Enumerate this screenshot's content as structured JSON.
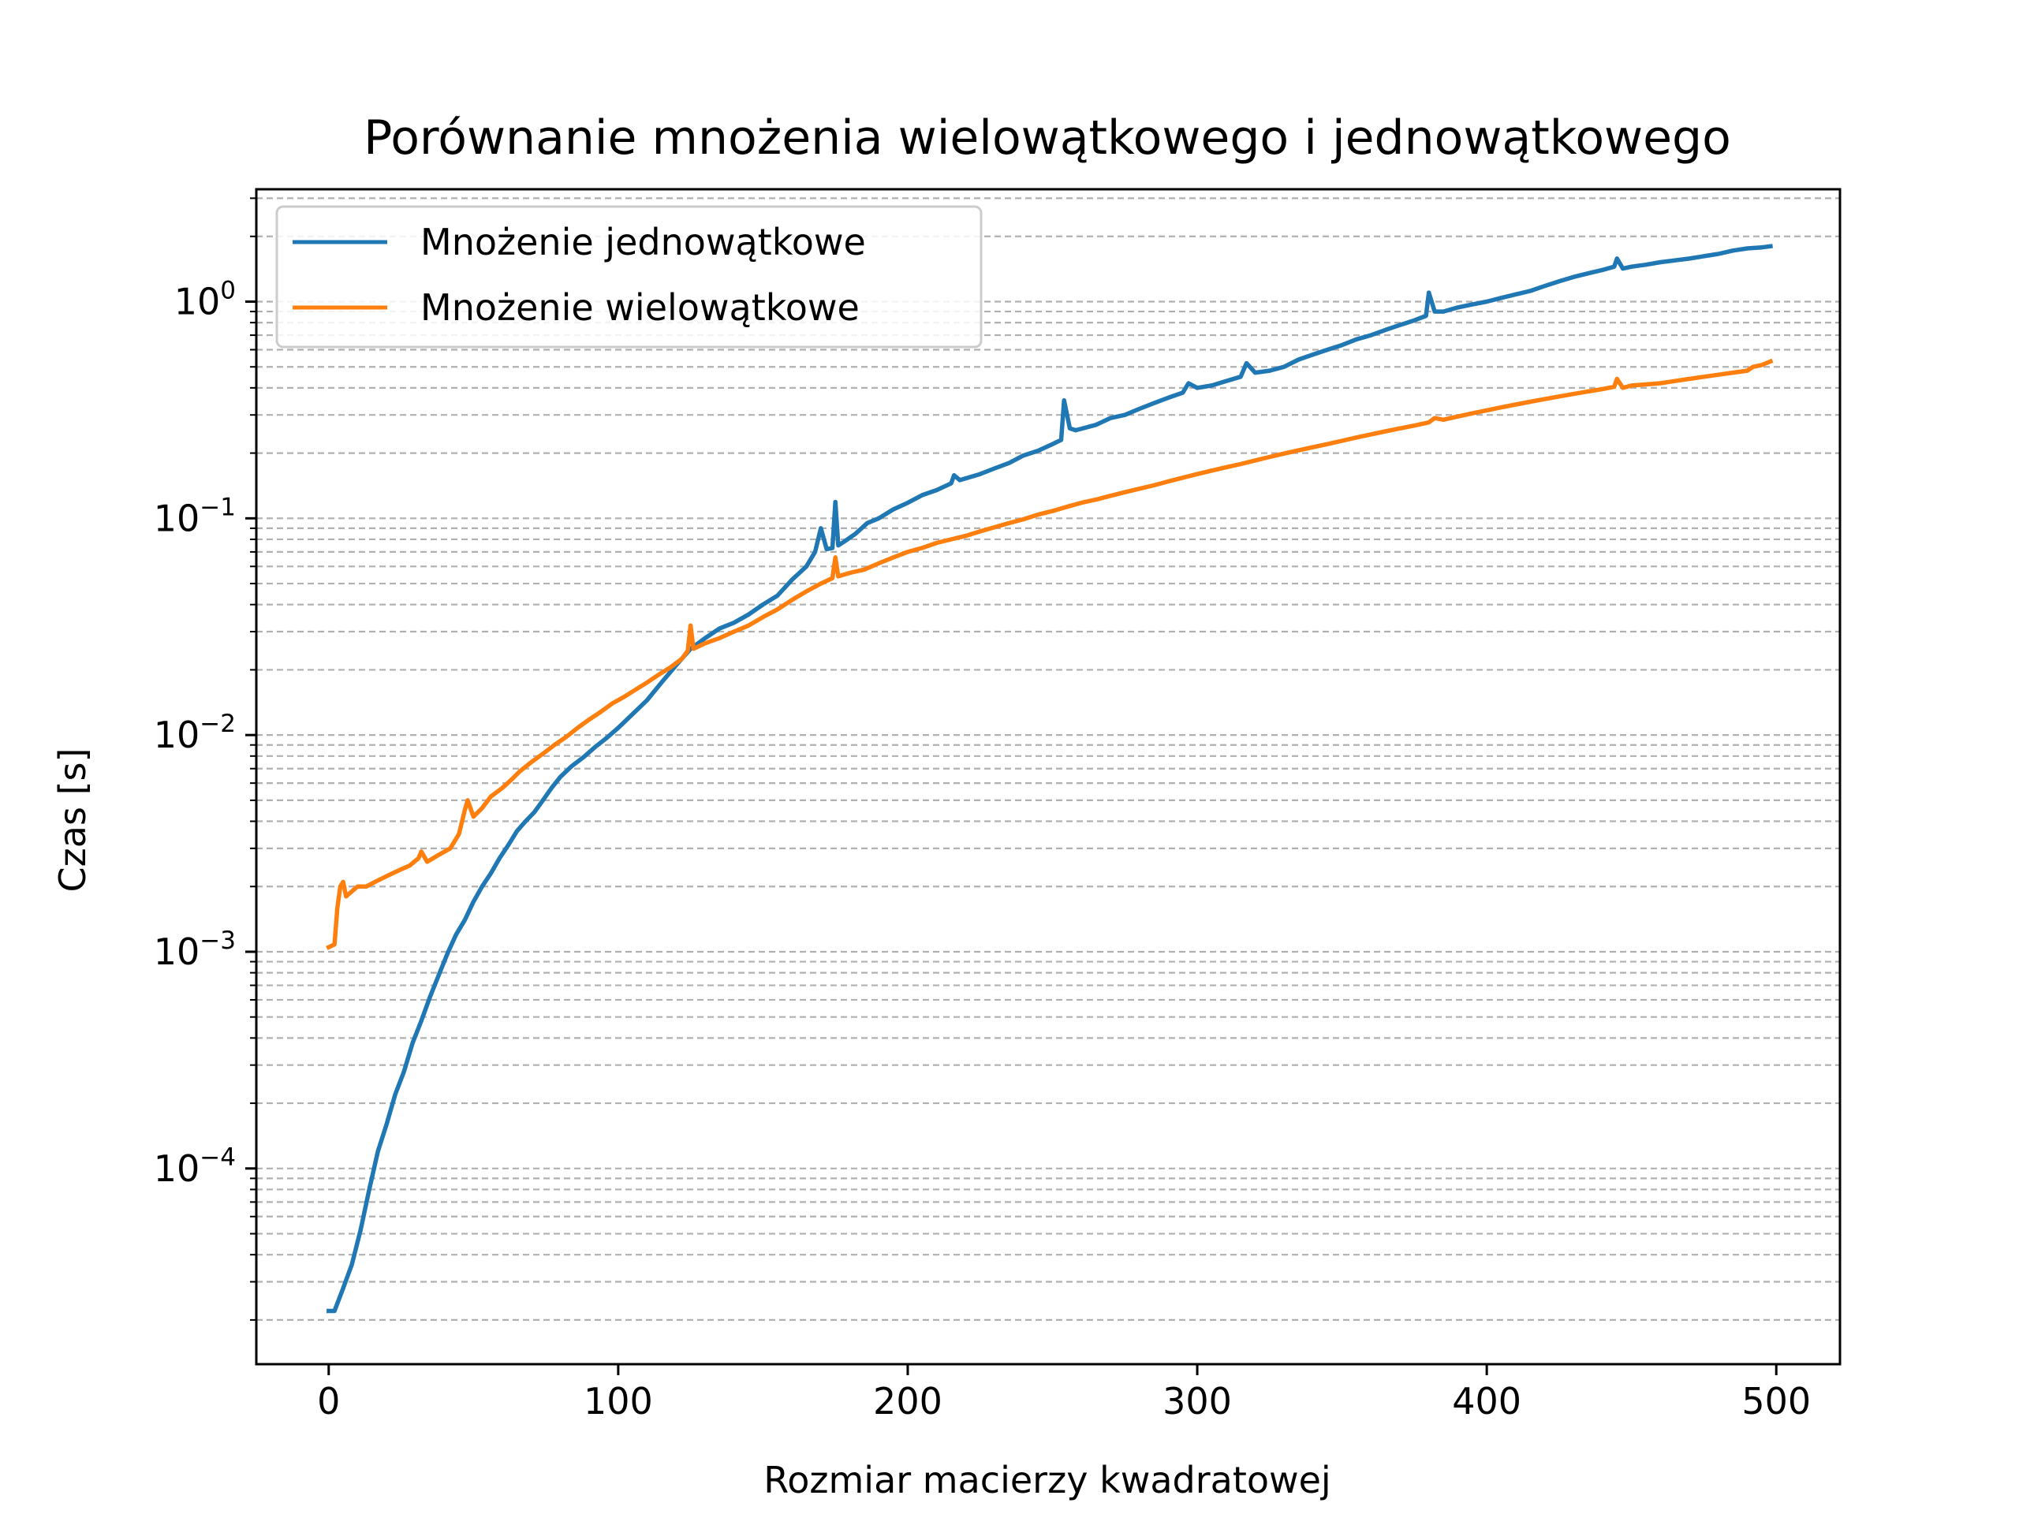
{
  "chart_data": {
    "type": "line",
    "title": "Porównanie mnożenia wielowątkowego i jednowątkowego",
    "xlabel": "Rozmiar macierzy kwadratowej",
    "ylabel": "Czas [s]",
    "xlim": [
      -25,
      522
    ],
    "ylim": [
      1.25e-05,
      3.3
    ],
    "yscale": "log",
    "grid": "y-major-and-minor-dashed",
    "legend": "top-left",
    "x_ticks": [
      {
        "value": 0,
        "label": "0"
      },
      {
        "value": 100,
        "label": "100"
      },
      {
        "value": 200,
        "label": "200"
      },
      {
        "value": 300,
        "label": "300"
      },
      {
        "value": 400,
        "label": "400"
      },
      {
        "value": 500,
        "label": "500"
      }
    ],
    "y_ticks": [
      {
        "value": 0.0001,
        "base": "10",
        "exp": "−4"
      },
      {
        "value": 0.001,
        "base": "10",
        "exp": "−3"
      },
      {
        "value": 0.01,
        "base": "10",
        "exp": "−2"
      },
      {
        "value": 0.1,
        "base": "10",
        "exp": "−1"
      },
      {
        "value": 1,
        "base": "10",
        "exp": "0"
      }
    ],
    "series": [
      {
        "name": "Mnożenie jednowątkowe",
        "color": "#1f77b4",
        "points": [
          [
            0,
            2.2e-05
          ],
          [
            2,
            2.2e-05
          ],
          [
            5,
            2.8e-05
          ],
          [
            8,
            3.6e-05
          ],
          [
            11,
            5.2e-05
          ],
          [
            14,
            8e-05
          ],
          [
            17,
            0.00012
          ],
          [
            20,
            0.00016
          ],
          [
            23,
            0.00022
          ],
          [
            26,
            0.00028
          ],
          [
            29,
            0.00038
          ],
          [
            32,
            0.00048
          ],
          [
            35,
            0.00062
          ],
          [
            38,
            0.00078
          ],
          [
            41,
            0.00098
          ],
          [
            44,
            0.0012
          ],
          [
            47,
            0.0014
          ],
          [
            50,
            0.0017
          ],
          [
            53,
            0.002
          ],
          [
            56,
            0.0023
          ],
          [
            59,
            0.0027
          ],
          [
            62,
            0.0031
          ],
          [
            65,
            0.0036
          ],
          [
            68,
            0.004
          ],
          [
            71,
            0.0044
          ],
          [
            74,
            0.005
          ],
          [
            77,
            0.0057
          ],
          [
            80,
            0.0064
          ],
          [
            84,
            0.0072
          ],
          [
            88,
            0.0079
          ],
          [
            92,
            0.0088
          ],
          [
            96,
            0.0097
          ],
          [
            100,
            0.0108
          ],
          [
            105,
            0.0125
          ],
          [
            110,
            0.0145
          ],
          [
            115,
            0.0175
          ],
          [
            120,
            0.021
          ],
          [
            125,
            0.025
          ],
          [
            130,
            0.028
          ],
          [
            135,
            0.031
          ],
          [
            140,
            0.033
          ],
          [
            145,
            0.036
          ],
          [
            150,
            0.04
          ],
          [
            155,
            0.044
          ],
          [
            160,
            0.052
          ],
          [
            165,
            0.06
          ],
          [
            168,
            0.07
          ],
          [
            170,
            0.09
          ],
          [
            172,
            0.072
          ],
          [
            174,
            0.073
          ],
          [
            175,
            0.119
          ],
          [
            176,
            0.075
          ],
          [
            178,
            0.078
          ],
          [
            182,
            0.085
          ],
          [
            186,
            0.095
          ],
          [
            190,
            0.1
          ],
          [
            195,
            0.11
          ],
          [
            200,
            0.118
          ],
          [
            205,
            0.128
          ],
          [
            210,
            0.135
          ],
          [
            215,
            0.145
          ],
          [
            216,
            0.158
          ],
          [
            218,
            0.15
          ],
          [
            225,
            0.16
          ],
          [
            230,
            0.17
          ],
          [
            235,
            0.18
          ],
          [
            240,
            0.195
          ],
          [
            245,
            0.205
          ],
          [
            250,
            0.22
          ],
          [
            253,
            0.23
          ],
          [
            254,
            0.35
          ],
          [
            256,
            0.26
          ],
          [
            258,
            0.255
          ],
          [
            265,
            0.27
          ],
          [
            270,
            0.29
          ],
          [
            275,
            0.3
          ],
          [
            280,
            0.32
          ],
          [
            285,
            0.34
          ],
          [
            290,
            0.36
          ],
          [
            295,
            0.38
          ],
          [
            297,
            0.42
          ],
          [
            300,
            0.4
          ],
          [
            305,
            0.41
          ],
          [
            310,
            0.43
          ],
          [
            315,
            0.45
          ],
          [
            317,
            0.52
          ],
          [
            320,
            0.47
          ],
          [
            325,
            0.48
          ],
          [
            330,
            0.5
          ],
          [
            335,
            0.54
          ],
          [
            340,
            0.57
          ],
          [
            345,
            0.6
          ],
          [
            350,
            0.63
          ],
          [
            355,
            0.67
          ],
          [
            360,
            0.7
          ],
          [
            365,
            0.74
          ],
          [
            370,
            0.78
          ],
          [
            375,
            0.82
          ],
          [
            379,
            0.86
          ],
          [
            380,
            1.1
          ],
          [
            382,
            0.9
          ],
          [
            385,
            0.9
          ],
          [
            390,
            0.94
          ],
          [
            395,
            0.97
          ],
          [
            400,
            1.0
          ],
          [
            405,
            1.04
          ],
          [
            410,
            1.08
          ],
          [
            415,
            1.12
          ],
          [
            420,
            1.18
          ],
          [
            425,
            1.24
          ],
          [
            430,
            1.3
          ],
          [
            435,
            1.35
          ],
          [
            440,
            1.4
          ],
          [
            444,
            1.45
          ],
          [
            445,
            1.58
          ],
          [
            447,
            1.42
          ],
          [
            450,
            1.45
          ],
          [
            455,
            1.48
          ],
          [
            460,
            1.52
          ],
          [
            465,
            1.55
          ],
          [
            470,
            1.58
          ],
          [
            475,
            1.62
          ],
          [
            480,
            1.66
          ],
          [
            485,
            1.72
          ],
          [
            490,
            1.76
          ],
          [
            495,
            1.78
          ],
          [
            498,
            1.8
          ]
        ]
      },
      {
        "name": "Mnożenie wielowątkowe",
        "color": "#ff7f0e",
        "points": [
          [
            0,
            0.00105
          ],
          [
            2,
            0.00108
          ],
          [
            3,
            0.0016
          ],
          [
            4,
            0.002
          ],
          [
            5,
            0.0021
          ],
          [
            6,
            0.0018
          ],
          [
            8,
            0.0019
          ],
          [
            10,
            0.002
          ],
          [
            13,
            0.002
          ],
          [
            16,
            0.0021
          ],
          [
            19,
            0.0022
          ],
          [
            22,
            0.0023
          ],
          [
            25,
            0.0024
          ],
          [
            28,
            0.0025
          ],
          [
            31,
            0.0027
          ],
          [
            32,
            0.0029
          ],
          [
            34,
            0.0026
          ],
          [
            38,
            0.0028
          ],
          [
            42,
            0.003
          ],
          [
            45,
            0.0035
          ],
          [
            47,
            0.0045
          ],
          [
            48,
            0.005
          ],
          [
            50,
            0.0042
          ],
          [
            53,
            0.0046
          ],
          [
            56,
            0.0052
          ],
          [
            60,
            0.0057
          ],
          [
            63,
            0.0062
          ],
          [
            66,
            0.0068
          ],
          [
            70,
            0.0075
          ],
          [
            74,
            0.0082
          ],
          [
            78,
            0.009
          ],
          [
            82,
            0.0098
          ],
          [
            86,
            0.0108
          ],
          [
            90,
            0.0118
          ],
          [
            94,
            0.0128
          ],
          [
            98,
            0.014
          ],
          [
            102,
            0.015
          ],
          [
            106,
            0.0162
          ],
          [
            110,
            0.0175
          ],
          [
            114,
            0.019
          ],
          [
            118,
            0.0205
          ],
          [
            122,
            0.0225
          ],
          [
            124,
            0.0245
          ],
          [
            125,
            0.032
          ],
          [
            126,
            0.025
          ],
          [
            130,
            0.0265
          ],
          [
            135,
            0.028
          ],
          [
            140,
            0.03
          ],
          [
            145,
            0.032
          ],
          [
            150,
            0.035
          ],
          [
            155,
            0.038
          ],
          [
            160,
            0.042
          ],
          [
            165,
            0.046
          ],
          [
            170,
            0.05
          ],
          [
            174,
            0.053
          ],
          [
            175,
            0.066
          ],
          [
            176,
            0.054
          ],
          [
            180,
            0.056
          ],
          [
            185,
            0.058
          ],
          [
            190,
            0.062
          ],
          [
            195,
            0.066
          ],
          [
            200,
            0.07
          ],
          [
            205,
            0.073
          ],
          [
            210,
            0.077
          ],
          [
            215,
            0.08
          ],
          [
            220,
            0.083
          ],
          [
            225,
            0.087
          ],
          [
            230,
            0.091
          ],
          [
            235,
            0.095
          ],
          [
            240,
            0.099
          ],
          [
            245,
            0.104
          ],
          [
            250,
            0.108
          ],
          [
            255,
            0.113
          ],
          [
            260,
            0.118
          ],
          [
            265,
            0.122
          ],
          [
            270,
            0.127
          ],
          [
            275,
            0.132
          ],
          [
            280,
            0.137
          ],
          [
            285,
            0.142
          ],
          [
            290,
            0.148
          ],
          [
            295,
            0.154
          ],
          [
            300,
            0.16
          ],
          [
            305,
            0.166
          ],
          [
            310,
            0.172
          ],
          [
            315,
            0.178
          ],
          [
            320,
            0.185
          ],
          [
            325,
            0.192
          ],
          [
            330,
            0.199
          ],
          [
            335,
            0.206
          ],
          [
            340,
            0.213
          ],
          [
            345,
            0.22
          ],
          [
            350,
            0.228
          ],
          [
            355,
            0.236
          ],
          [
            360,
            0.244
          ],
          [
            365,
            0.252
          ],
          [
            370,
            0.26
          ],
          [
            375,
            0.268
          ],
          [
            380,
            0.277
          ],
          [
            382,
            0.29
          ],
          [
            385,
            0.285
          ],
          [
            390,
            0.295
          ],
          [
            395,
            0.305
          ],
          [
            400,
            0.315
          ],
          [
            405,
            0.325
          ],
          [
            410,
            0.335
          ],
          [
            415,
            0.345
          ],
          [
            420,
            0.355
          ],
          [
            425,
            0.365
          ],
          [
            430,
            0.375
          ],
          [
            435,
            0.385
          ],
          [
            440,
            0.395
          ],
          [
            444,
            0.405
          ],
          [
            445,
            0.44
          ],
          [
            447,
            0.4
          ],
          [
            450,
            0.41
          ],
          [
            455,
            0.415
          ],
          [
            460,
            0.42
          ],
          [
            465,
            0.43
          ],
          [
            470,
            0.44
          ],
          [
            475,
            0.45
          ],
          [
            480,
            0.46
          ],
          [
            485,
            0.47
          ],
          [
            490,
            0.48
          ],
          [
            492,
            0.5
          ],
          [
            495,
            0.51
          ],
          [
            498,
            0.53
          ]
        ]
      }
    ]
  }
}
